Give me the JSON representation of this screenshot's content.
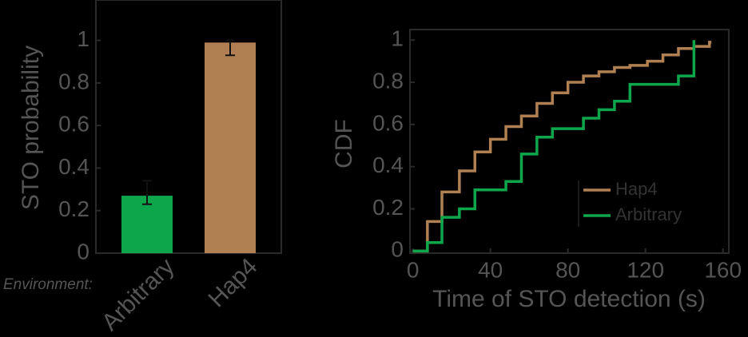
{
  "chart_data": [
    {
      "type": "bar",
      "y_label": "STO probability",
      "x_label": "Environment:",
      "categories": [
        "Arbitrary",
        "Hap4"
      ],
      "values": [
        0.27,
        0.99
      ],
      "colors": [
        "#0ea64a",
        "#b08052"
      ],
      "err_low": [
        0.23,
        0.93
      ],
      "err_high": [
        0.34,
        1.0
      ],
      "ylim": [
        0,
        1.19
      ],
      "yticks": [
        0,
        0.2,
        0.4,
        0.6,
        0.8,
        1
      ]
    },
    {
      "type": "step",
      "x_label": "Time of STO detection (s)",
      "y_label": "CDF",
      "xlim": [
        -1.5,
        163
      ],
      "ylim": [
        -0.01,
        1.05
      ],
      "xticks": [
        0,
        40,
        80,
        120,
        160
      ],
      "yticks": [
        0,
        0.2,
        0.4,
        0.6,
        0.8,
        1
      ],
      "legend": "lower right",
      "series": [
        {
          "name": "Hap4",
          "color": "#b08052",
          "x": [
            0,
            7.5,
            15,
            24,
            32,
            40,
            48,
            56,
            64,
            72,
            80,
            88,
            96,
            104,
            112,
            121,
            129,
            137,
            145,
            153,
            154
          ],
          "values": [
            0,
            0.14,
            0.28,
            0.38,
            0.47,
            0.53,
            0.59,
            0.64,
            0.7,
            0.75,
            0.8,
            0.83,
            0.85,
            0.87,
            0.88,
            0.9,
            0.93,
            0.96,
            0.97,
            0.99,
            0.99
          ]
        },
        {
          "name": "Arbitrary",
          "color": "#0ea64a",
          "x": [
            0,
            7.5,
            15,
            24,
            32,
            48,
            56,
            64,
            72,
            88,
            96,
            104,
            112,
            137,
            145
          ],
          "values": [
            0,
            0.04,
            0.16,
            0.2,
            0.29,
            0.33,
            0.46,
            0.54,
            0.58,
            0.63,
            0.67,
            0.71,
            0.79,
            0.83,
            1.0
          ]
        }
      ]
    }
  ]
}
